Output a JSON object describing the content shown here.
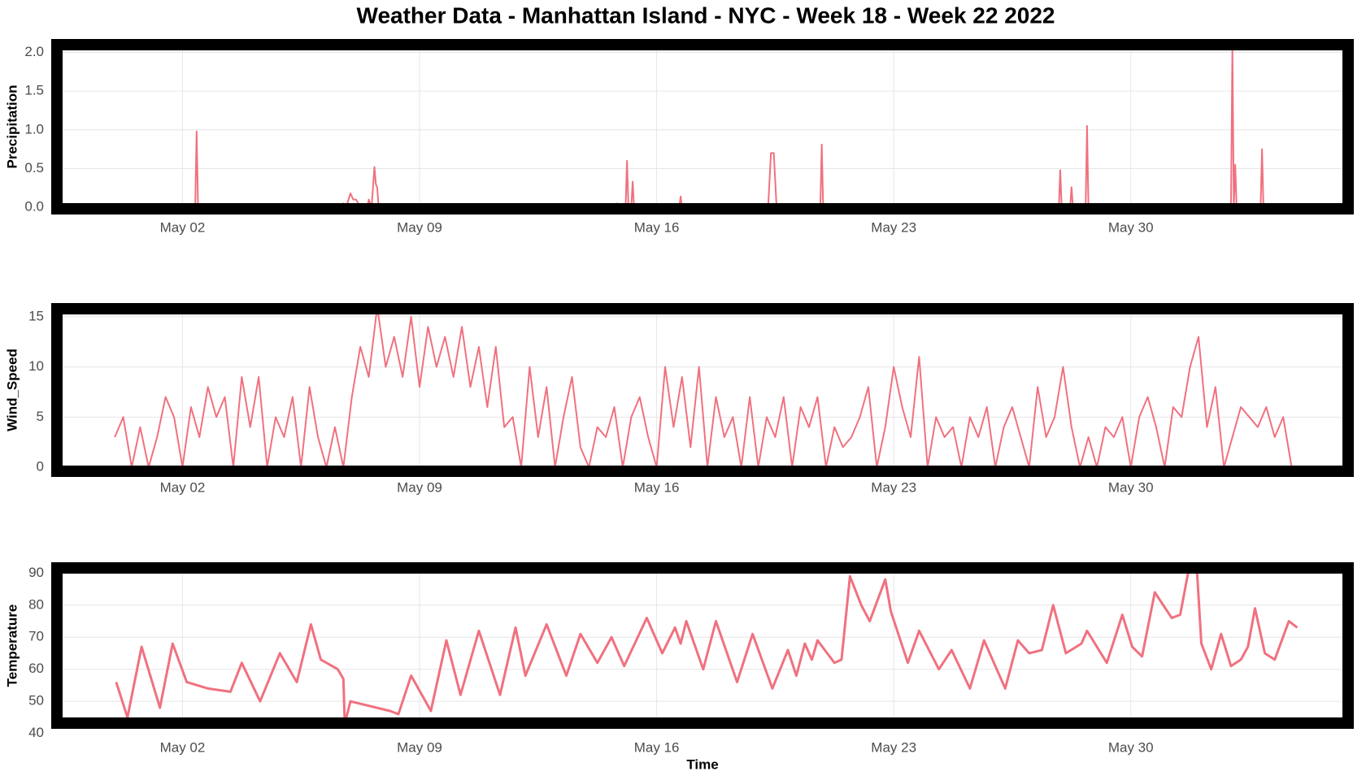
{
  "title": "Weather Data - Manhattan Island - NYC - Week 18 - Week 22 2022",
  "chart_data": [
    {
      "type": "line",
      "y_label": "Precipitation",
      "color": "#f0717f",
      "grid": true,
      "xlim": [
        "2022-04-28 07:00",
        "2022-06-05 10:00"
      ],
      "xticks": [
        {
          "value": "2022-05-02 00:00",
          "label": "May 02"
        },
        {
          "value": "2022-05-09 00:00",
          "label": "May 09"
        },
        {
          "value": "2022-05-16 00:00",
          "label": "May 16"
        },
        {
          "value": "2022-05-23 00:00",
          "label": "May 23"
        },
        {
          "value": "2022-05-30 00:00",
          "label": "May 30"
        }
      ],
      "ylim": [
        -0.02,
        2.1
      ],
      "yticks": [
        {
          "value": 0,
          "label": "0.0"
        },
        {
          "value": 0.5,
          "label": "0.5"
        },
        {
          "value": 1,
          "label": "1.0"
        },
        {
          "value": 1.5,
          "label": "1.5"
        },
        {
          "value": 2,
          "label": "2.0"
        }
      ],
      "x": [
        "2022-04-30 00:00",
        "2022-05-02 09:00",
        "2022-05-02 10:00",
        "2022-05-02 11:00",
        "2022-05-06 17:00",
        "2022-05-06 18:00",
        "2022-05-06 20:00",
        "2022-05-06 23:00",
        "2022-05-07 01:00",
        "2022-05-07 03:00",
        "2022-05-07 06:00",
        "2022-05-07 11:00",
        "2022-05-07 12:00",
        "2022-05-07 14:00",
        "2022-05-07 16:00",
        "2022-05-07 17:00",
        "2022-05-07 18:00",
        "2022-05-07 19:00",
        "2022-05-14 19:00",
        "2022-05-14 20:00",
        "2022-05-14 21:00",
        "2022-05-15 02:00",
        "2022-05-15 03:00",
        "2022-05-15 04:00",
        "2022-05-15 06:00",
        "2022-05-15 07:00",
        "2022-05-15 08:00",
        "2022-05-16 16:00",
        "2022-05-16 17:00",
        "2022-05-16 18:00",
        "2022-05-19 07:00",
        "2022-05-19 09:00",
        "2022-05-19 11:00",
        "2022-05-19 13:00",
        "2022-05-20 20:00",
        "2022-05-20 21:00",
        "2022-05-20 22:00",
        "2022-05-27 21:00",
        "2022-05-27 22:00",
        "2022-05-27 23:00",
        "2022-05-28 05:00",
        "2022-05-28 06:00",
        "2022-05-28 07:00",
        "2022-05-28 16:00",
        "2022-05-28 17:00",
        "2022-05-28 18:00",
        "2022-06-01 23:00",
        "2022-06-02 00:00",
        "2022-06-02 01:00",
        "2022-06-02 02:00",
        "2022-06-02 03:00",
        "2022-06-02 20:00",
        "2022-06-02 21:00",
        "2022-06-02 22:00",
        "2022-06-03 22:00"
      ],
      "values": [
        0,
        0,
        0.98,
        0,
        0,
        0.05,
        0,
        0.18,
        0.1,
        0.1,
        0,
        0,
        0.1,
        0,
        0.52,
        0.3,
        0.25,
        0,
        0,
        0.05,
        0,
        0,
        0.6,
        0,
        0,
        0.33,
        0,
        0,
        0.14,
        0,
        0,
        0.7,
        0.7,
        0,
        0,
        0.81,
        0,
        0,
        0.48,
        0,
        0,
        0.26,
        0,
        0,
        1.05,
        0,
        0,
        2.08,
        0,
        0.55,
        0,
        0,
        0.75,
        0,
        0
      ]
    },
    {
      "type": "line",
      "y_label": "Wind_Speed",
      "color": "#f0717f",
      "grid": true,
      "xlim": [
        "2022-04-28 07:00",
        "2022-06-05 10:00"
      ],
      "xticks": [
        {
          "value": "2022-05-02 00:00",
          "label": "May 02"
        },
        {
          "value": "2022-05-09 00:00",
          "label": "May 09"
        },
        {
          "value": "2022-05-16 00:00",
          "label": "May 16"
        },
        {
          "value": "2022-05-23 00:00",
          "label": "May 23"
        },
        {
          "value": "2022-05-30 00:00",
          "label": "May 30"
        }
      ],
      "ylim": [
        -0.4,
        15.8
      ],
      "yticks": [
        0,
        5,
        10,
        15
      ],
      "x": [
        "2022-04-30 00:00",
        "2022-04-30 06:00",
        "2022-04-30 12:00",
        "2022-04-30 18:00",
        "2022-05-01 00:00",
        "2022-05-01 06:00",
        "2022-05-01 12:00",
        "2022-05-01 18:00",
        "2022-05-02 00:00",
        "2022-05-02 06:00",
        "2022-05-02 12:00",
        "2022-05-02 18:00",
        "2022-05-03 00:00",
        "2022-05-03 06:00",
        "2022-05-03 12:00",
        "2022-05-03 18:00",
        "2022-05-04 00:00",
        "2022-05-04 06:00",
        "2022-05-04 12:00",
        "2022-05-04 18:00",
        "2022-05-05 00:00",
        "2022-05-05 06:00",
        "2022-05-05 12:00",
        "2022-05-05 18:00",
        "2022-05-06 00:00",
        "2022-05-06 06:00",
        "2022-05-06 12:00",
        "2022-05-06 18:00",
        "2022-05-07 00:00",
        "2022-05-07 06:00",
        "2022-05-07 12:00",
        "2022-05-07 18:00",
        "2022-05-08 00:00",
        "2022-05-08 06:00",
        "2022-05-08 12:00",
        "2022-05-08 18:00",
        "2022-05-09 00:00",
        "2022-05-09 06:00",
        "2022-05-09 12:00",
        "2022-05-09 18:00",
        "2022-05-10 00:00",
        "2022-05-10 06:00",
        "2022-05-10 12:00",
        "2022-05-10 18:00",
        "2022-05-11 00:00",
        "2022-05-11 06:00",
        "2022-05-11 12:00",
        "2022-05-11 18:00",
        "2022-05-12 00:00",
        "2022-05-12 06:00",
        "2022-05-12 12:00",
        "2022-05-12 18:00",
        "2022-05-13 00:00",
        "2022-05-13 06:00",
        "2022-05-13 12:00",
        "2022-05-13 18:00",
        "2022-05-14 00:00",
        "2022-05-14 06:00",
        "2022-05-14 12:00",
        "2022-05-14 18:00",
        "2022-05-15 00:00",
        "2022-05-15 06:00",
        "2022-05-15 12:00",
        "2022-05-15 18:00",
        "2022-05-16 00:00",
        "2022-05-16 06:00",
        "2022-05-16 12:00",
        "2022-05-16 18:00",
        "2022-05-17 00:00",
        "2022-05-17 06:00",
        "2022-05-17 12:00",
        "2022-05-17 18:00",
        "2022-05-18 00:00",
        "2022-05-18 06:00",
        "2022-05-18 12:00",
        "2022-05-18 18:00",
        "2022-05-19 00:00",
        "2022-05-19 06:00",
        "2022-05-19 12:00",
        "2022-05-19 18:00",
        "2022-05-20 00:00",
        "2022-05-20 06:00",
        "2022-05-20 12:00",
        "2022-05-20 18:00",
        "2022-05-21 00:00",
        "2022-05-21 06:00",
        "2022-05-21 12:00",
        "2022-05-21 18:00",
        "2022-05-22 00:00",
        "2022-05-22 06:00",
        "2022-05-22 12:00",
        "2022-05-22 18:00",
        "2022-05-23 00:00",
        "2022-05-23 06:00",
        "2022-05-23 12:00",
        "2022-05-23 18:00",
        "2022-05-24 00:00",
        "2022-05-24 06:00",
        "2022-05-24 12:00",
        "2022-05-24 18:00",
        "2022-05-25 00:00",
        "2022-05-25 06:00",
        "2022-05-25 12:00",
        "2022-05-25 18:00",
        "2022-05-26 00:00",
        "2022-05-26 06:00",
        "2022-05-26 12:00",
        "2022-05-26 18:00",
        "2022-05-27 00:00",
        "2022-05-27 06:00",
        "2022-05-27 12:00",
        "2022-05-27 18:00",
        "2022-05-28 00:00",
        "2022-05-28 06:00",
        "2022-05-28 12:00",
        "2022-05-28 18:00",
        "2022-05-29 00:00",
        "2022-05-29 06:00",
        "2022-05-29 12:00",
        "2022-05-29 18:00",
        "2022-05-30 00:00",
        "2022-05-30 06:00",
        "2022-05-30 12:00",
        "2022-05-30 18:00",
        "2022-05-31 00:00",
        "2022-05-31 06:00",
        "2022-05-31 12:00",
        "2022-05-31 18:00",
        "2022-06-01 00:00",
        "2022-06-01 06:00",
        "2022-06-01 12:00",
        "2022-06-01 18:00",
        "2022-06-02 00:00",
        "2022-06-02 06:00",
        "2022-06-02 12:00",
        "2022-06-02 18:00",
        "2022-06-03 00:00",
        "2022-06-03 06:00",
        "2022-06-03 12:00",
        "2022-06-03 18:00"
      ],
      "values": [
        3,
        5,
        0,
        4,
        0,
        3,
        7,
        5,
        0,
        6,
        3,
        8,
        5,
        7,
        0,
        9,
        4,
        9,
        0,
        5,
        3,
        7,
        0,
        8,
        3,
        0,
        4,
        0,
        7,
        12,
        9,
        16,
        10,
        13,
        9,
        15,
        8,
        14,
        10,
        13,
        9,
        14,
        8,
        12,
        6,
        12,
        4,
        5,
        0,
        10,
        3,
        8,
        0,
        5,
        9,
        2,
        0,
        4,
        3,
        6,
        0,
        5,
        7,
        3,
        0,
        10,
        4,
        9,
        2,
        10,
        0,
        7,
        3,
        5,
        0,
        7,
        0,
        5,
        3,
        7,
        0,
        6,
        4,
        7,
        0,
        4,
        2,
        3,
        5,
        8,
        0,
        4,
        10,
        6,
        3,
        11,
        0,
        5,
        3,
        4,
        0,
        5,
        3,
        6,
        0,
        4,
        6,
        3,
        0,
        8,
        3,
        5,
        10,
        4,
        0,
        3,
        0,
        4,
        3,
        5,
        0,
        5,
        7,
        4,
        0,
        6,
        5,
        10,
        13,
        4,
        8,
        0,
        3,
        6,
        5,
        4,
        6,
        3,
        5,
        0
      ]
    },
    {
      "type": "line",
      "y_label": "Temperature",
      "x_label": "Time",
      "color": "#f0717f",
      "grid": true,
      "xlim": [
        "2022-04-28 07:00",
        "2022-06-05 10:00"
      ],
      "xticks": [
        {
          "value": "2022-05-02 00:00",
          "label": "May 02"
        },
        {
          "value": "2022-05-09 00:00",
          "label": "May 09"
        },
        {
          "value": "2022-05-16 00:00",
          "label": "May 16"
        },
        {
          "value": "2022-05-23 00:00",
          "label": "May 23"
        },
        {
          "value": "2022-05-30 00:00",
          "label": "May 30"
        }
      ],
      "ylim": [
        43.2,
        91.6
      ],
      "yticks": [
        40,
        50,
        60,
        70,
        80,
        90
      ],
      "x": [
        "2022-04-30 01:00",
        "2022-04-30 09:00",
        "2022-04-30 19:00",
        "2022-05-01 08:00",
        "2022-05-01 17:00",
        "2022-05-02 03:00",
        "2022-05-02 18:00",
        "2022-05-03 10:00",
        "2022-05-03 18:00",
        "2022-05-04 07:00",
        "2022-05-04 21:00",
        "2022-05-05 09:00",
        "2022-05-05 19:00",
        "2022-05-06 02:00",
        "2022-05-06 14:00",
        "2022-05-06 18:00",
        "2022-05-06 19:00",
        "2022-05-06 23:00",
        "2022-05-08 03:00",
        "2022-05-08 09:00",
        "2022-05-08 18:00",
        "2022-05-09 08:00",
        "2022-05-09 19:00",
        "2022-05-10 05:00",
        "2022-05-10 18:00",
        "2022-05-11 09:00",
        "2022-05-11 20:00",
        "2022-05-12 03:00",
        "2022-05-12 18:00",
        "2022-05-13 08:00",
        "2022-05-13 18:00",
        "2022-05-14 06:00",
        "2022-05-14 16:00",
        "2022-05-15 01:00",
        "2022-05-15 17:00",
        "2022-05-16 04:00",
        "2022-05-16 13:00",
        "2022-05-16 17:00",
        "2022-05-16 21:00",
        "2022-05-17 09:00",
        "2022-05-17 18:00",
        "2022-05-18 09:00",
        "2022-05-18 20:00",
        "2022-05-19 10:00",
        "2022-05-19 21:00",
        "2022-05-20 03:00",
        "2022-05-20 09:00",
        "2022-05-20 14:00",
        "2022-05-20 18:00",
        "2022-05-21 06:00",
        "2022-05-21 11:00",
        "2022-05-21 17:00",
        "2022-05-22 01:00",
        "2022-05-22 07:00",
        "2022-05-22 18:00",
        "2022-05-22 22:00",
        "2022-05-23 10:00",
        "2022-05-23 18:00",
        "2022-05-24 08:00",
        "2022-05-24 17:00",
        "2022-05-25 06:00",
        "2022-05-25 16:00",
        "2022-05-26 07:00",
        "2022-05-26 16:00",
        "2022-05-27 00:00",
        "2022-05-27 09:00",
        "2022-05-27 17:00",
        "2022-05-28 02:00",
        "2022-05-28 13:00",
        "2022-05-28 17:00",
        "2022-05-29 07:00",
        "2022-05-29 18:00",
        "2022-05-30 01:00",
        "2022-05-30 08:00",
        "2022-05-30 17:00",
        "2022-05-31 05:00",
        "2022-05-31 11:00",
        "2022-05-31 17:00",
        "2022-05-31 23:00",
        "2022-06-01 02:00",
        "2022-06-01 09:00",
        "2022-06-01 16:00",
        "2022-06-01 23:00",
        "2022-06-02 06:00",
        "2022-06-02 11:00",
        "2022-06-02 16:00",
        "2022-06-02 23:00",
        "2022-06-03 06:00",
        "2022-06-03 16:00",
        "2022-06-03 22:00"
      ],
      "values": [
        56,
        45,
        67,
        48,
        68,
        56,
        54,
        53,
        62,
        50,
        65,
        56,
        74,
        63,
        60,
        57,
        43,
        50,
        47,
        46,
        58,
        47,
        69,
        52,
        72,
        52,
        73,
        58,
        74,
        58,
        71,
        62,
        70,
        61,
        76,
        65,
        73,
        68,
        75,
        60,
        75,
        56,
        71,
        54,
        66,
        58,
        68,
        63,
        69,
        62,
        63,
        89,
        80,
        75,
        88,
        78,
        62,
        72,
        60,
        66,
        54,
        69,
        54,
        69,
        65,
        66,
        80,
        65,
        68,
        72,
        62,
        77,
        67,
        64,
        84,
        76,
        77,
        91,
        90,
        68,
        60,
        71,
        61,
        63,
        67,
        79,
        65,
        63,
        75,
        73
      ]
    }
  ]
}
